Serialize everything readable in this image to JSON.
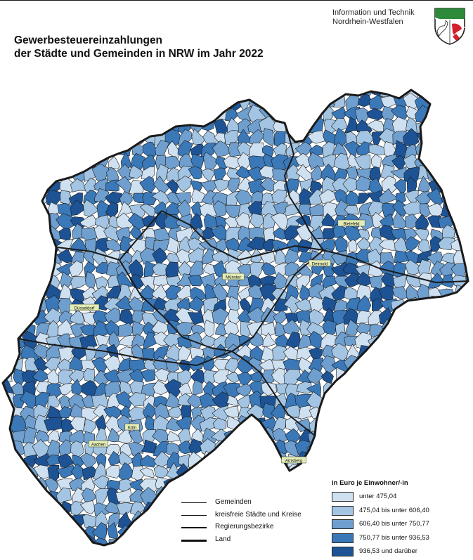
{
  "header": {
    "org_line1": "Information und Technik",
    "org_line2": "Nordrhein-Westfalen",
    "title_line1": "Gewerbesteuereinzahlungen",
    "title_line2": "der Städte und Gemeinden in NRW im Jahr 2022"
  },
  "map": {
    "colors": {
      "class1": "#cfe0f1",
      "class2": "#a3c5e3",
      "class3": "#6f9fcf",
      "class4": "#3a78b8",
      "class5": "#1d5394",
      "highlight": "#e2ecb4",
      "border": "#1a1a1a"
    },
    "city_labels": [
      "Münster",
      "Bielefeld",
      "Düsseldorf",
      "Köln",
      "Detmold",
      "Arnsberg",
      "Aachen"
    ]
  },
  "line_legend": [
    {
      "label": "Gemeinden",
      "weight": 1
    },
    {
      "label": "kreisfreie Städte und Kreise",
      "weight": 1.5
    },
    {
      "label": "Regierungsbezirke",
      "weight": 2.2
    },
    {
      "label": "Land",
      "weight": 3
    }
  ],
  "legend": {
    "title": "in Euro je Einwohner/-in",
    "classes": [
      {
        "label": "unter 475,04",
        "color": "#cfe0f1"
      },
      {
        "label": "475,04 bis unter 606,40",
        "color": "#a3c5e3"
      },
      {
        "label": "606,40 bis unter 750,77",
        "color": "#6f9fcf"
      },
      {
        "label": "750,77 bis unter 936,53",
        "color": "#3a78b8"
      },
      {
        "label": "936,53 und darüber",
        "color": "#1d5394"
      }
    ]
  }
}
